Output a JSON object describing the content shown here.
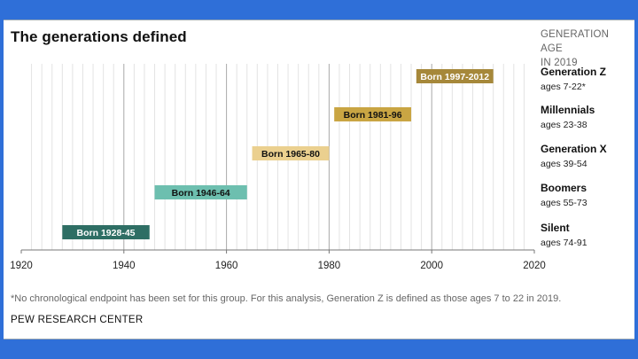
{
  "title": "The generations defined",
  "legend_heading_line1": "GENERATION AGE",
  "legend_heading_line2": "IN 2019",
  "note": "*No chronological endpoint has been set for this group. For this analysis, Generation Z is defined as those ages 7 to 22 in 2019.",
  "source": "PEW RESEARCH CENTER",
  "colors": {
    "background": "#2f6fd8",
    "grid_minor": "#e3e3e3",
    "grid_major": "#a9a9a9",
    "axis": "#777777"
  },
  "chart_data": {
    "type": "bar",
    "orientation": "horizontal-range",
    "title": "The generations defined",
    "x_axis": {
      "min": 1920,
      "max": 2020,
      "major_ticks": [
        1920,
        1940,
        1960,
        1980,
        2000,
        2020
      ],
      "minor_step": 2
    },
    "series": [
      {
        "name": "Generation Z",
        "ages": "ages 7-22*",
        "start": 1997,
        "end": 2012,
        "label": "Born 1997-2012",
        "color": "#a6883a",
        "text_color": "#ffffff"
      },
      {
        "name": "Millennials",
        "ages": "ages 23-38",
        "start": 1981,
        "end": 1996,
        "label": "Born 1981-96",
        "color": "#c9a543",
        "text_color": "#111111"
      },
      {
        "name": "Generation X",
        "ages": "ages 39-54",
        "start": 1965,
        "end": 1980,
        "label": "Born 1965-80",
        "color": "#ebd08f",
        "text_color": "#111111"
      },
      {
        "name": "Boomers",
        "ages": "ages 55-73",
        "start": 1946,
        "end": 1964,
        "label": "Born 1946-64",
        "color": "#6dbfaf",
        "text_color": "#111111"
      },
      {
        "name": "Silent",
        "ages": "ages 74-91",
        "start": 1928,
        "end": 1945,
        "label": "Born 1928-45",
        "color": "#2e6e64",
        "text_color": "#ffffff"
      }
    ]
  }
}
